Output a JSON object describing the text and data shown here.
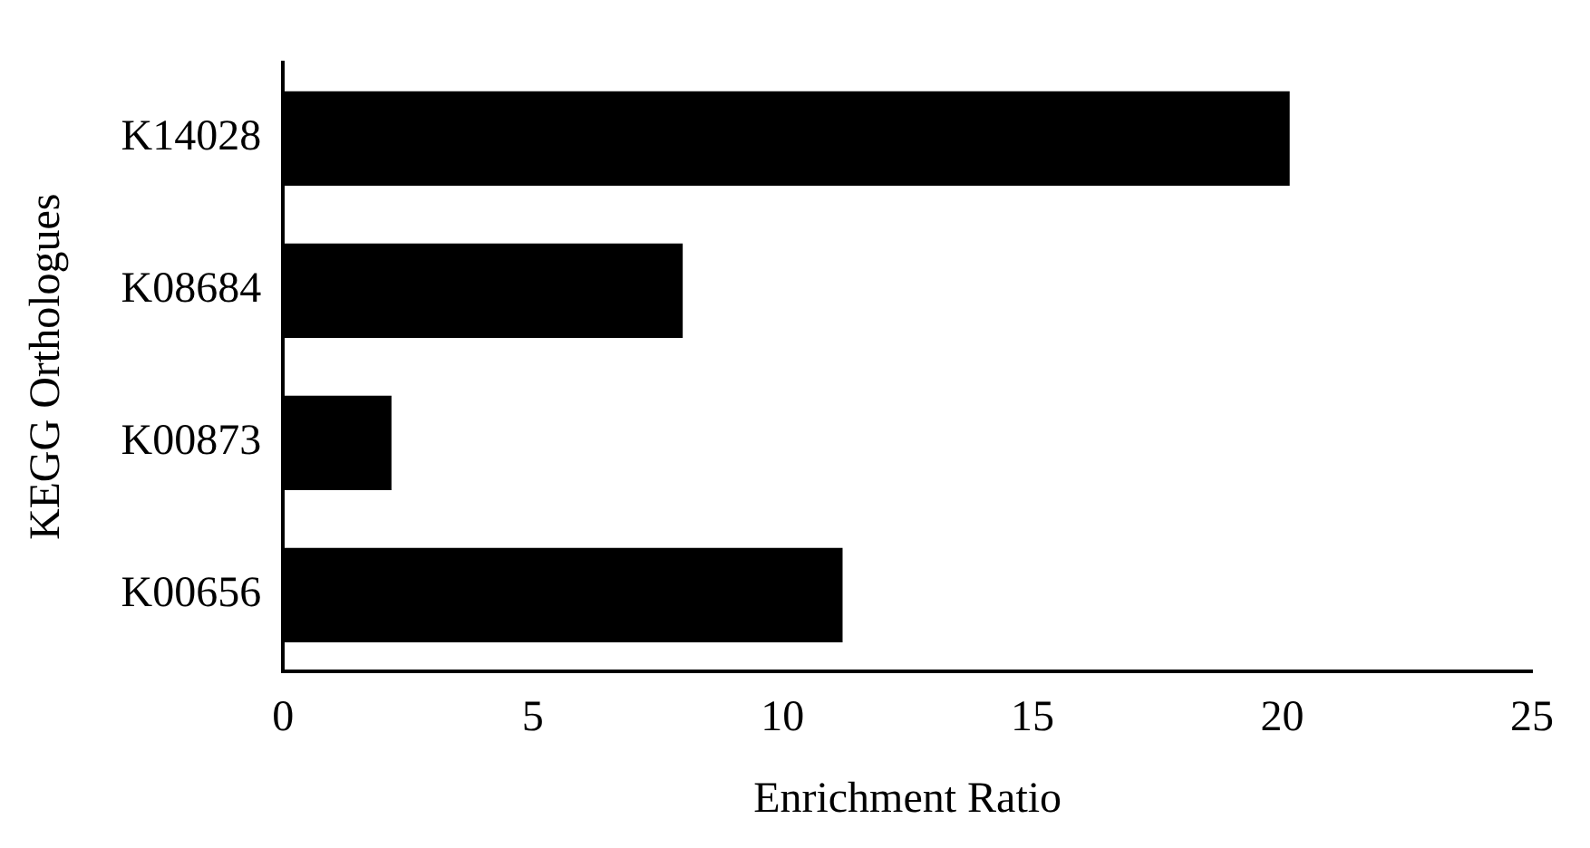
{
  "chart_data": {
    "type": "bar",
    "orientation": "horizontal",
    "xlabel": "Enrichment Ratio",
    "ylabel": "KEGG Orthologues",
    "categories": [
      "K14028",
      "K08684",
      "K00873",
      "K00656"
    ],
    "values": [
      20.15,
      8.0,
      2.17,
      11.2
    ],
    "color": "#000000",
    "xlim": [
      0,
      25
    ],
    "xticks": [
      0,
      5,
      10,
      15,
      20,
      25
    ],
    "grid": false,
    "legend": false
  }
}
